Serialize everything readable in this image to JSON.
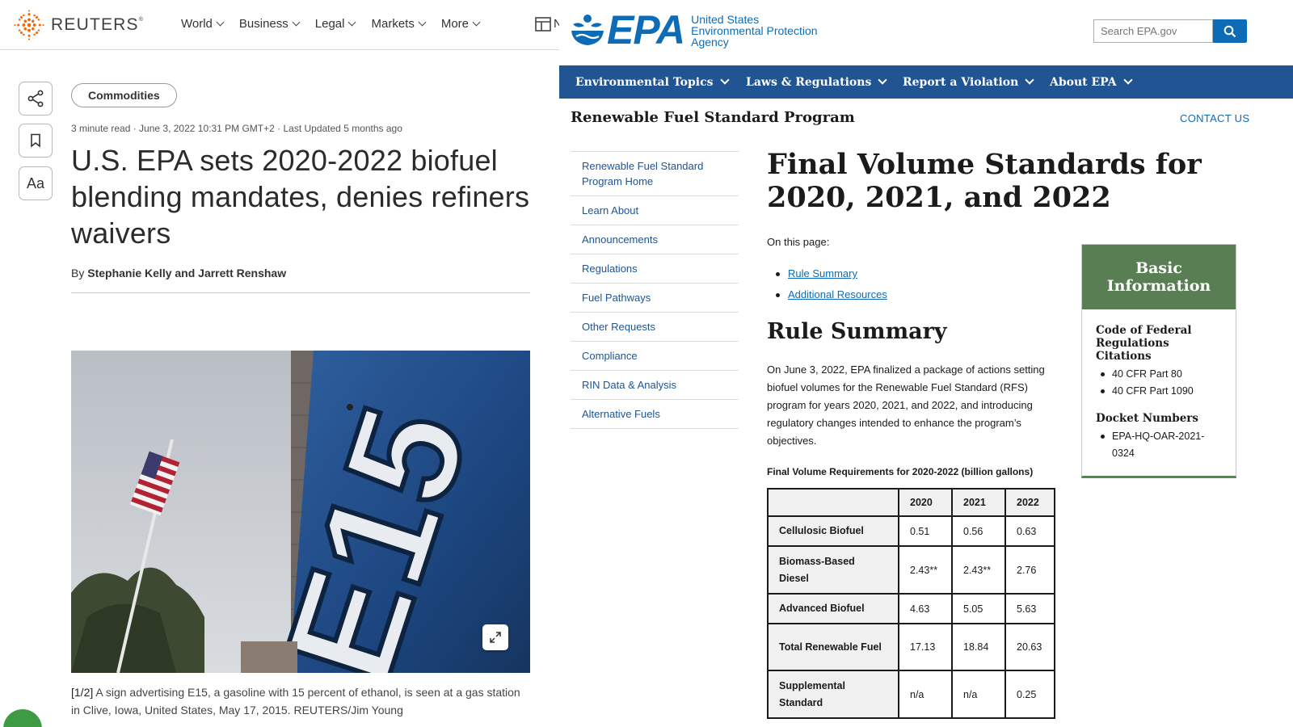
{
  "reuters": {
    "logo_text": "REUTERS",
    "logo_mark": "®",
    "nav": [
      {
        "label": "World"
      },
      {
        "label": "Business"
      },
      {
        "label": "Legal"
      },
      {
        "label": "Markets"
      },
      {
        "label": "More"
      }
    ],
    "nav_cut_text": "N",
    "side_buttons": {
      "share_icon": "share-icon",
      "bookmark_icon": "bookmark-icon",
      "font_size_label": "Aa"
    },
    "topic_chip": "Commodities",
    "meta": "3 minute read · June 3, 2022 10:31 PM GMT+2 · Last Updated 5 months ago",
    "headline": "U.S. EPA sets 2020-2022 biofuel blending mandates, denies refiners waivers",
    "byline_prefix": "By",
    "byline_authors": "Stephanie Kelly and Jarrett Renshaw",
    "photo_sign_text": "E15",
    "caption_counter": "[1/2]",
    "caption": "A sign advertising E15, a gasoline with 15 percent of ethanol, is seen at a gas station in Clive, Iowa, United States, May 17, 2015. REUTERS/Jim Young",
    "accent_color": "#fa6400"
  },
  "epa": {
    "logo_word": "EPA",
    "logo_sub_lines": [
      "United States",
      "Environmental Protection",
      "Agency"
    ],
    "search_placeholder": "Search EPA.gov",
    "nav": [
      {
        "label": "Environmental Topics"
      },
      {
        "label": "Laws & Regulations"
      },
      {
        "label": "Report a Violation"
      },
      {
        "label": "About EPA"
      }
    ],
    "program_title": "Renewable Fuel Standard Program",
    "contact": "CONTACT US",
    "sidenav": [
      {
        "label": "Renewable Fuel Standard Program Home"
      },
      {
        "label": "Learn About"
      },
      {
        "label": "Announcements"
      },
      {
        "label": "Regulations"
      },
      {
        "label": "Fuel Pathways"
      },
      {
        "label": "Other Requests"
      },
      {
        "label": "Compliance"
      },
      {
        "label": "RIN Data & Analysis"
      },
      {
        "label": "Alternative Fuels"
      }
    ],
    "page_title": "Final Volume Standards for 2020, 2021, and 2022",
    "on_this_page": "On this page:",
    "toc": [
      {
        "label": "Rule Summary"
      },
      {
        "label": "Additional Resources"
      }
    ],
    "section_title": "Rule Summary",
    "summary": "On June 3, 2022, EPA finalized a package of actions setting biofuel volumes for the Renewable Fuel Standard (RFS) program for years 2020, 2021, and 2022, and introducing regulatory changes intended to enhance the program’s objectives.",
    "table_caption": "Final Volume Requirements for 2020-2022 (billion gallons)",
    "table": {
      "headers": [
        "",
        "2020",
        "2021",
        "2022"
      ],
      "rows": [
        {
          "label": "Cellulosic Biofuel",
          "values": [
            "0.51",
            "0.56",
            "0.63"
          ]
        },
        {
          "label": "Biomass-Based Diesel",
          "values": [
            "2.43**",
            "2.43**",
            "2.76"
          ]
        },
        {
          "label": "Advanced Biofuel",
          "values": [
            "4.63",
            "5.05",
            "5.63"
          ]
        },
        {
          "label": "Total Renewable Fuel",
          "values": [
            "17.13",
            "18.84",
            "20.63"
          ]
        },
        {
          "label": "Supplemental Standard",
          "values": [
            "n/a",
            "n/a",
            "0.25"
          ]
        }
      ]
    },
    "info_box": {
      "title": "Basic Information",
      "sections": [
        {
          "heading": "Code of Federal Regulations Citations",
          "items": [
            "40 CFR Part 80",
            "40 CFR Part 1090"
          ]
        },
        {
          "heading": "Docket Numbers",
          "items": [
            "EPA-HQ-OAR-2021-0324"
          ]
        }
      ]
    },
    "brand_color": "#0e6cb6",
    "nav_color": "#205493",
    "infobox_color": "#5a7e53"
  }
}
